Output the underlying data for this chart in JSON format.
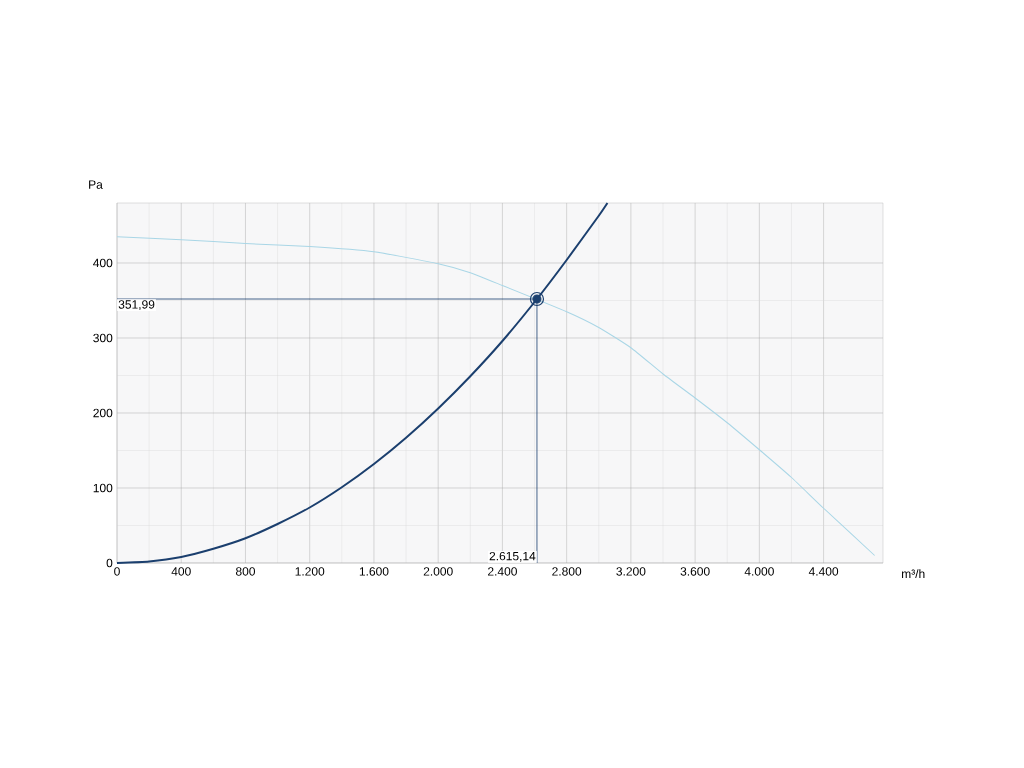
{
  "chart_data": {
    "type": "line",
    "xlabel": "m³/h",
    "ylabel": "Pa",
    "xlim": [
      0,
      4770
    ],
    "ylim": [
      0,
      480
    ],
    "xticks": [
      0,
      400,
      800,
      {
        "value": 1200,
        "label": "1.200"
      },
      {
        "value": 1600,
        "label": "1.600"
      },
      {
        "value": 2000,
        "label": "2.000"
      },
      {
        "value": 2400,
        "label": "2.400"
      },
      {
        "value": 2800,
        "label": "2.800"
      },
      {
        "value": 3200,
        "label": "3.200"
      },
      {
        "value": 3600,
        "label": "3.600"
      },
      {
        "value": 4000,
        "label": "4.000"
      },
      {
        "value": 4400,
        "label": "4.400"
      }
    ],
    "yticks": [
      0,
      100,
      200,
      300,
      400
    ],
    "grid": true,
    "line_style": "solid",
    "series": [
      {
        "color": "#a9d6e6",
        "x": [
          0,
          400,
          800,
          1200,
          1600,
          2000,
          2200,
          2400,
          2615.14,
          2800,
          3000,
          3200,
          3400,
          3600,
          3800,
          4000,
          4200,
          4400,
          4718
        ],
        "values": [
          435,
          431,
          426,
          422,
          415,
          399,
          387,
          370,
          null,
          335,
          314,
          287,
          252,
          220,
          187,
          151,
          114,
          73,
          10
        ]
      },
      {
        "color": "#1b3f6e",
        "x": [
          0,
          200,
          400,
          600,
          800,
          1000,
          1200,
          1400,
          1600,
          1800,
          2000,
          2200,
          2400,
          2615.14,
          2800,
          3000,
          3054
        ],
        "values": [
          0,
          2,
          8,
          19,
          33,
          52,
          74,
          101,
          132,
          167,
          206,
          249,
          296,
          351.99,
          404,
          463,
          480
        ]
      },
      {
        "type": "scatter",
        "marker": "circle",
        "color": "#1b3f6e",
        "x": [
          2615.14
        ],
        "values": [
          351.99
        ]
      }
    ],
    "ref_lines": [
      {
        "axis": "y",
        "value": 351.99,
        "label": "351,99",
        "color": "#1b3f6e"
      },
      {
        "axis": "x",
        "value": 2615.14,
        "label": "2.615,14",
        "color": "#1b3f6e"
      }
    ]
  }
}
